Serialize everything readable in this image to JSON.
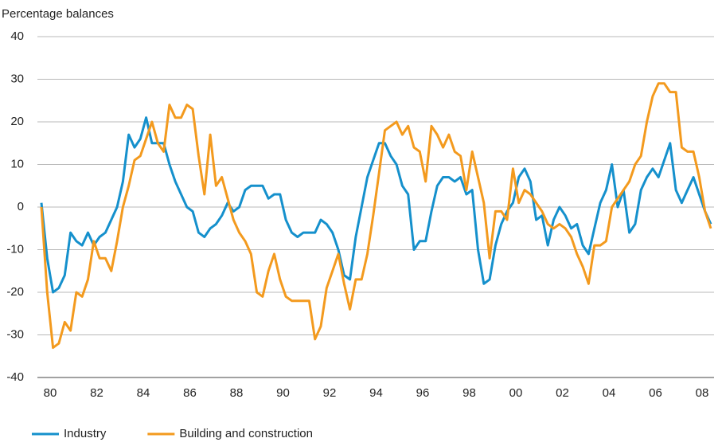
{
  "chart_data": {
    "type": "line",
    "ylabel": "Percentage balances",
    "categories": [
      "80",
      null,
      null,
      null,
      null,
      null,
      null,
      null,
      "82",
      null,
      null,
      null,
      null,
      null,
      null,
      null,
      "84",
      null,
      null,
      null,
      null,
      null,
      null,
      null,
      "86",
      null,
      null,
      null,
      null,
      null,
      null,
      null,
      "88",
      null,
      null,
      null,
      null,
      null,
      null,
      null,
      "90",
      null,
      null,
      null,
      null,
      null,
      null,
      null,
      "92",
      null,
      null,
      null,
      null,
      null,
      null,
      null,
      "94",
      null,
      null,
      null,
      null,
      null,
      null,
      null,
      "96",
      null,
      null,
      null,
      null,
      null,
      null,
      null,
      "98",
      null,
      null,
      null,
      null,
      null,
      null,
      null,
      "00",
      null,
      null,
      null,
      null,
      null,
      null,
      null,
      "02",
      null,
      null,
      null,
      null,
      null,
      null,
      null,
      "04",
      null,
      null,
      null,
      null,
      null,
      null,
      null,
      "06",
      null,
      null,
      null,
      null,
      null,
      null,
      null,
      "08",
      null,
      null,
      null
    ],
    "series": [
      {
        "name": "Industry",
        "color": "#1590cc",
        "values": [
          1,
          -12,
          -20,
          -19,
          -16,
          -6,
          -8,
          -9,
          -6,
          -9,
          -7,
          -6,
          -3,
          0,
          6,
          17,
          14,
          16,
          21,
          15,
          15,
          15,
          10,
          6,
          3,
          0,
          -1,
          -6,
          -7,
          -5,
          -4,
          -2,
          1,
          -1,
          0,
          4,
          5,
          5,
          5,
          2,
          3,
          3,
          -3,
          -6,
          -7,
          -6,
          -6,
          -6,
          -3,
          -4,
          -6,
          -10,
          -16,
          -17,
          -7,
          0,
          7,
          11,
          15,
          15,
          12,
          10,
          5,
          3,
          -10,
          -8,
          -8,
          -1,
          5,
          7,
          7,
          6,
          7,
          3,
          4,
          -10,
          -18,
          -17,
          -9,
          -4,
          -1,
          1,
          7,
          9,
          6,
          -3,
          -2,
          -9,
          -3,
          0,
          -2,
          -5,
          -4,
          -9,
          -11,
          -5,
          1,
          4,
          10,
          0,
          4,
          -6,
          -4,
          4,
          7,
          9,
          7,
          11,
          15,
          4,
          1,
          4,
          7,
          3,
          -1,
          -4
        ]
      },
      {
        "name": "Building and construction",
        "color": "#f39a1e",
        "values": [
          0,
          -20,
          -33,
          -32,
          -27,
          -29,
          -20,
          -21,
          -17,
          -8,
          -12,
          -12,
          -15,
          -8,
          0,
          5,
          11,
          12,
          16,
          20,
          15,
          13,
          24,
          21,
          21,
          24,
          23,
          12,
          3,
          17,
          5,
          7,
          2,
          -3,
          -6,
          -8,
          -11,
          -20,
          -21,
          -15,
          -11,
          -17,
          -21,
          -22,
          -22,
          -22,
          -22,
          -31,
          -28,
          -19,
          -15,
          -11,
          -18,
          -24,
          -17,
          -17,
          -11,
          -2,
          8,
          18,
          19,
          20,
          17,
          19,
          14,
          13,
          6,
          19,
          17,
          14,
          17,
          13,
          12,
          4,
          13,
          7,
          1,
          -12,
          -1,
          -1,
          -3,
          9,
          1,
          4,
          3,
          1,
          -1,
          -4,
          -5,
          -4,
          -5,
          -7,
          -11,
          -14,
          -18,
          -9,
          -9,
          -8,
          0,
          2,
          4,
          6,
          10,
          12,
          20,
          26,
          29,
          29,
          27,
          27,
          14,
          13,
          13,
          7,
          -1,
          -5
        ]
      }
    ],
    "ylim": [
      -40,
      40
    ],
    "yticks": [
      -40,
      -30,
      -20,
      -10,
      0,
      10,
      20,
      30,
      40
    ],
    "grid": true
  }
}
